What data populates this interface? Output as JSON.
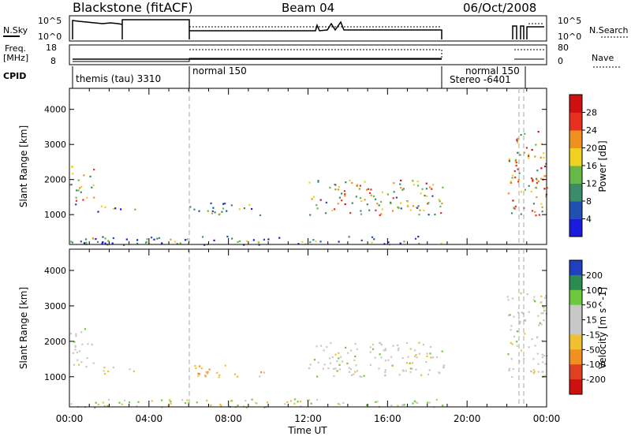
{
  "header": {
    "station": "Blackstone (fitACF)",
    "beam": "Beam 04",
    "date": "06/Oct/2008"
  },
  "summary": {
    "nsky_label": "N.Sky",
    "nsky_ticks": [
      "10^5",
      "10^0"
    ],
    "nsearch_label": "N.Search",
    "nsearch_ticks": [
      "10^5",
      "10^0"
    ],
    "freq_label": "Freq.",
    "freq_unit": "[MHz]",
    "freq_ticks": [
      "18",
      "8"
    ],
    "nave_label": "Nave",
    "nave_ticks": [
      "80",
      "0"
    ],
    "cpid_label": "CPID",
    "cpid_segments": [
      {
        "label": "themis (tau) 3310",
        "start_hour": 0.0
      },
      {
        "label": "normal 150",
        "start_hour": 6.0
      },
      {
        "label": "normal 150",
        "start_hour": 20.0
      },
      {
        "label": "Stereo -6401",
        "start_hour": 19.5
      }
    ]
  },
  "chart_data": [
    {
      "type": "heatmap",
      "name": "power",
      "ylabel": "Slant Range [km]",
      "y_ticks": [
        "1000",
        "2000",
        "3000",
        "4000"
      ],
      "ylim": [
        150,
        4600
      ],
      "xlim": [
        0,
        24
      ],
      "colorbar": {
        "label": "Power [dB]",
        "tick_labels": [
          "4",
          "8",
          "12",
          "16",
          "20",
          "24",
          "28"
        ],
        "colors": [
          "#1a1adc",
          "#2050b0",
          "#3a8c6a",
          "#66b848",
          "#f0d020",
          "#f09020",
          "#e83020",
          "#d01010"
        ],
        "range": [
          0,
          32
        ]
      },
      "regions": [
        {
          "t": [
            0.0,
            1.2
          ],
          "r": [
            1300,
            2400
          ],
          "level": 0.55
        },
        {
          "t": [
            1.2,
            3.3
          ],
          "r": [
            1100,
            1300
          ],
          "level": 0.3
        },
        {
          "t": [
            6.0,
            9.8
          ],
          "r": [
            1000,
            1350
          ],
          "level": 0.35
        },
        {
          "t": [
            12.0,
            18.8
          ],
          "r": [
            1000,
            2000
          ],
          "level": 0.55
        },
        {
          "t": [
            22.0,
            24.0
          ],
          "r": [
            1000,
            3400
          ],
          "level": 0.65
        },
        {
          "t": [
            0.0,
            18.8
          ],
          "r": [
            150,
            400
          ],
          "level": 0.3
        }
      ]
    },
    {
      "type": "heatmap",
      "name": "velocity",
      "ylabel": "Slant Range [km]",
      "y_ticks": [
        "1000",
        "2000",
        "3000",
        "4000"
      ],
      "ylim": [
        150,
        4600
      ],
      "xlim": [
        0,
        24
      ],
      "x_ticks": [
        "00:00",
        "04:00",
        "08:00",
        "12:00",
        "16:00",
        "20:00",
        "00:00"
      ],
      "xlabel": "Time UT",
      "colorbar": {
        "label": "Velocity [m s^-1]",
        "tick_labels": [
          "200",
          "100",
          "50",
          "15",
          "-15",
          "-50",
          "-100",
          "-200"
        ],
        "colors": [
          "#2040c0",
          "#2c8c50",
          "#6cc83c",
          "#c8c8c8",
          "#c8c8c8",
          "#f0c030",
          "#f09020",
          "#e04020",
          "#d01010"
        ],
        "range": [
          -250,
          250
        ]
      },
      "regions": [
        {
          "t": [
            0.0,
            1.2
          ],
          "r": [
            1300,
            2400
          ],
          "level": "gray"
        },
        {
          "t": [
            1.2,
            3.3
          ],
          "r": [
            1100,
            1300
          ],
          "level": "orange"
        },
        {
          "t": [
            6.0,
            9.8
          ],
          "r": [
            1000,
            1350
          ],
          "level": "orange"
        },
        {
          "t": [
            12.0,
            18.8
          ],
          "r": [
            1000,
            2000
          ],
          "level": "gray"
        },
        {
          "t": [
            22.0,
            24.0
          ],
          "r": [
            1000,
            3400
          ],
          "level": "gray"
        },
        {
          "t": [
            0.0,
            18.8
          ],
          "r": [
            150,
            400
          ],
          "level": "green"
        }
      ]
    }
  ]
}
